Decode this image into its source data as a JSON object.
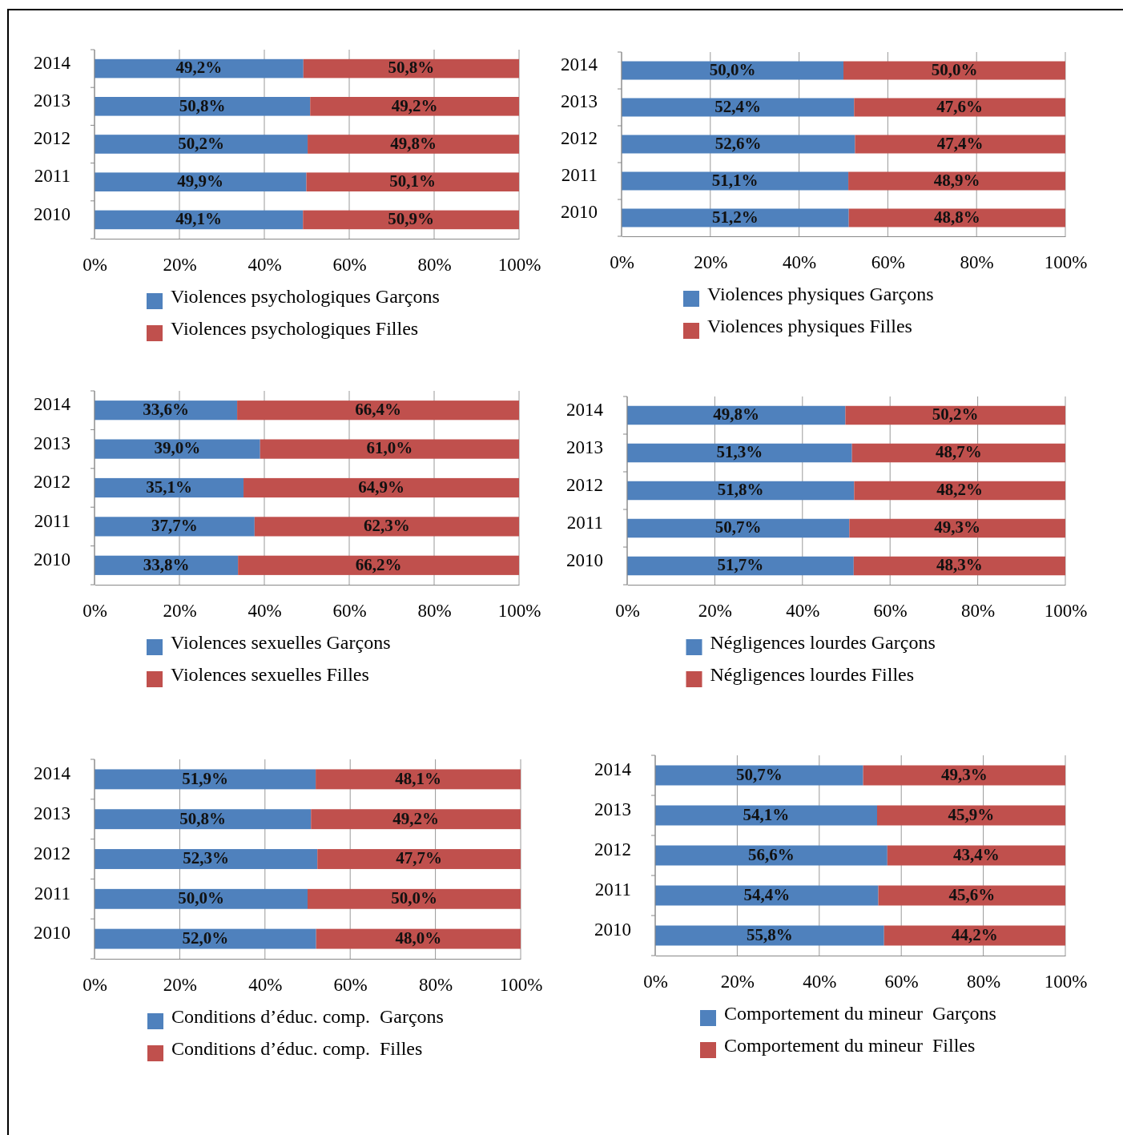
{
  "chart_data": [
    {
      "type": "bar",
      "orientation": "horizontal",
      "stacked": true,
      "categories": [
        "2014",
        "2013",
        "2012",
        "2011",
        "2010"
      ],
      "xlim": [
        0,
        100
      ],
      "xticks": [
        {
          "value": 0,
          "label": "0%"
        },
        {
          "value": 20,
          "label": "20%"
        },
        {
          "value": 40,
          "label": "40%"
        },
        {
          "value": 60,
          "label": "60%"
        },
        {
          "value": 80,
          "label": "80%"
        },
        {
          "value": 100,
          "label": "100%"
        }
      ],
      "grid": "x",
      "legend": "bottom",
      "series": [
        {
          "name": "Violences psychologiques Garçons",
          "color": "#4f81bd",
          "values": [
            49.2,
            50.8,
            50.2,
            49.9,
            49.1
          ],
          "value_labels": [
            "49,2%",
            "50,8%",
            "50,2%",
            "49,9%",
            "49,1%"
          ]
        },
        {
          "name": "Violences psychologiques Filles",
          "color": "#c0504d",
          "values": [
            50.8,
            49.2,
            49.8,
            50.1,
            50.9
          ],
          "value_labels": [
            "50,8%",
            "49,2%",
            "49,8%",
            "50,1%",
            "50,9%"
          ]
        }
      ]
    },
    {
      "type": "bar",
      "orientation": "horizontal",
      "stacked": true,
      "categories": [
        "2014",
        "2013",
        "2012",
        "2011",
        "2010"
      ],
      "xlim": [
        0,
        100
      ],
      "xticks": [
        {
          "value": 0,
          "label": "0%"
        },
        {
          "value": 20,
          "label": "20%"
        },
        {
          "value": 40,
          "label": "40%"
        },
        {
          "value": 60,
          "label": "60%"
        },
        {
          "value": 80,
          "label": "80%"
        },
        {
          "value": 100,
          "label": "100%"
        }
      ],
      "grid": "x",
      "legend": "bottom",
      "series": [
        {
          "name": "Violences physiques Garçons",
          "color": "#4f81bd",
          "values": [
            50.0,
            52.4,
            52.6,
            51.1,
            51.2
          ],
          "value_labels": [
            "50,0%",
            "52,4%",
            "52,6%",
            "51,1%",
            "51,2%"
          ]
        },
        {
          "name": "Violences physiques Filles",
          "color": "#c0504d",
          "values": [
            50.0,
            47.6,
            47.4,
            48.9,
            48.8
          ],
          "value_labels": [
            "50,0%",
            "47,6%",
            "47,4%",
            "48,9%",
            "48,8%"
          ]
        }
      ]
    },
    {
      "type": "bar",
      "orientation": "horizontal",
      "stacked": true,
      "categories": [
        "2014",
        "2013",
        "2012",
        "2011",
        "2010"
      ],
      "xlim": [
        0,
        100
      ],
      "xticks": [
        {
          "value": 0,
          "label": "0%"
        },
        {
          "value": 20,
          "label": "20%"
        },
        {
          "value": 40,
          "label": "40%"
        },
        {
          "value": 60,
          "label": "60%"
        },
        {
          "value": 80,
          "label": "80%"
        },
        {
          "value": 100,
          "label": "100%"
        }
      ],
      "grid": "x",
      "legend": "bottom",
      "series": [
        {
          "name": "Violences sexuelles Garçons",
          "color": "#4f81bd",
          "values": [
            33.6,
            39.0,
            35.1,
            37.7,
            33.8
          ],
          "value_labels": [
            "33,6%",
            "39,0%",
            "35,1%",
            "37,7%",
            "33,8%"
          ]
        },
        {
          "name": "Violences sexuelles Filles",
          "color": "#c0504d",
          "values": [
            66.4,
            61.0,
            64.9,
            62.3,
            66.2
          ],
          "value_labels": [
            "66,4%",
            "61,0%",
            "64,9%",
            "62,3%",
            "66,2%"
          ]
        }
      ]
    },
    {
      "type": "bar",
      "orientation": "horizontal",
      "stacked": true,
      "categories": [
        "2014",
        "2013",
        "2012",
        "2011",
        "2010"
      ],
      "xlim": [
        0,
        100
      ],
      "xticks": [
        {
          "value": 0,
          "label": "0%"
        },
        {
          "value": 20,
          "label": "20%"
        },
        {
          "value": 40,
          "label": "40%"
        },
        {
          "value": 60,
          "label": "60%"
        },
        {
          "value": 80,
          "label": "80%"
        },
        {
          "value": 100,
          "label": "100%"
        }
      ],
      "grid": "x",
      "legend": "bottom",
      "series": [
        {
          "name": "Négligences lourdes Garçons",
          "color": "#4f81bd",
          "values": [
            49.8,
            51.3,
            51.8,
            50.7,
            51.7
          ],
          "value_labels": [
            "49,8%",
            "51,3%",
            "51,8%",
            "50,7%",
            "51,7%"
          ]
        },
        {
          "name": "Négligences lourdes Filles",
          "color": "#c0504d",
          "values": [
            50.2,
            48.7,
            48.2,
            49.3,
            48.3
          ],
          "value_labels": [
            "50,2%",
            "48,7%",
            "48,2%",
            "49,3%",
            "48,3%"
          ]
        }
      ]
    },
    {
      "type": "bar",
      "orientation": "horizontal",
      "stacked": true,
      "categories": [
        "2014",
        "2013",
        "2012",
        "2011",
        "2010"
      ],
      "xlim": [
        0,
        100
      ],
      "xticks": [
        {
          "value": 0,
          "label": "0%"
        },
        {
          "value": 20,
          "label": "20%"
        },
        {
          "value": 40,
          "label": "40%"
        },
        {
          "value": 60,
          "label": "60%"
        },
        {
          "value": 80,
          "label": "80%"
        },
        {
          "value": 100,
          "label": "100%"
        }
      ],
      "grid": "x",
      "legend": "bottom",
      "series": [
        {
          "name": "Conditions d’éduc. comp.  Garçons",
          "color": "#4f81bd",
          "values": [
            51.9,
            50.8,
            52.3,
            50.0,
            52.0
          ],
          "value_labels": [
            "51,9%",
            "50,8%",
            "52,3%",
            "50,0%",
            "52,0%"
          ]
        },
        {
          "name": "Conditions d’éduc. comp.  Filles",
          "color": "#c0504d",
          "values": [
            48.1,
            49.2,
            47.7,
            50.0,
            48.0
          ],
          "value_labels": [
            "48,1%",
            "49,2%",
            "47,7%",
            "50,0%",
            "48,0%"
          ]
        }
      ]
    },
    {
      "type": "bar",
      "orientation": "horizontal",
      "stacked": true,
      "categories": [
        "2014",
        "2013",
        "2012",
        "2011",
        "2010"
      ],
      "xlim": [
        0,
        100
      ],
      "xticks": [
        {
          "value": 0,
          "label": "0%"
        },
        {
          "value": 20,
          "label": "20%"
        },
        {
          "value": 40,
          "label": "40%"
        },
        {
          "value": 60,
          "label": "60%"
        },
        {
          "value": 80,
          "label": "80%"
        },
        {
          "value": 100,
          "label": "100%"
        }
      ],
      "grid": "x",
      "legend": "bottom",
      "series": [
        {
          "name": "Comportement du mineur  Garçons",
          "color": "#4f81bd",
          "values": [
            50.7,
            54.1,
            56.6,
            54.4,
            55.8
          ],
          "value_labels": [
            "50,7%",
            "54,1%",
            "56,6%",
            "54,4%",
            "55,8%"
          ]
        },
        {
          "name": "Comportement du mineur  Filles",
          "color": "#c0504d",
          "values": [
            49.3,
            45.9,
            43.4,
            45.6,
            44.2
          ],
          "value_labels": [
            "49,3%",
            "45,9%",
            "43,4%",
            "45,6%",
            "44,2%"
          ]
        }
      ]
    }
  ]
}
